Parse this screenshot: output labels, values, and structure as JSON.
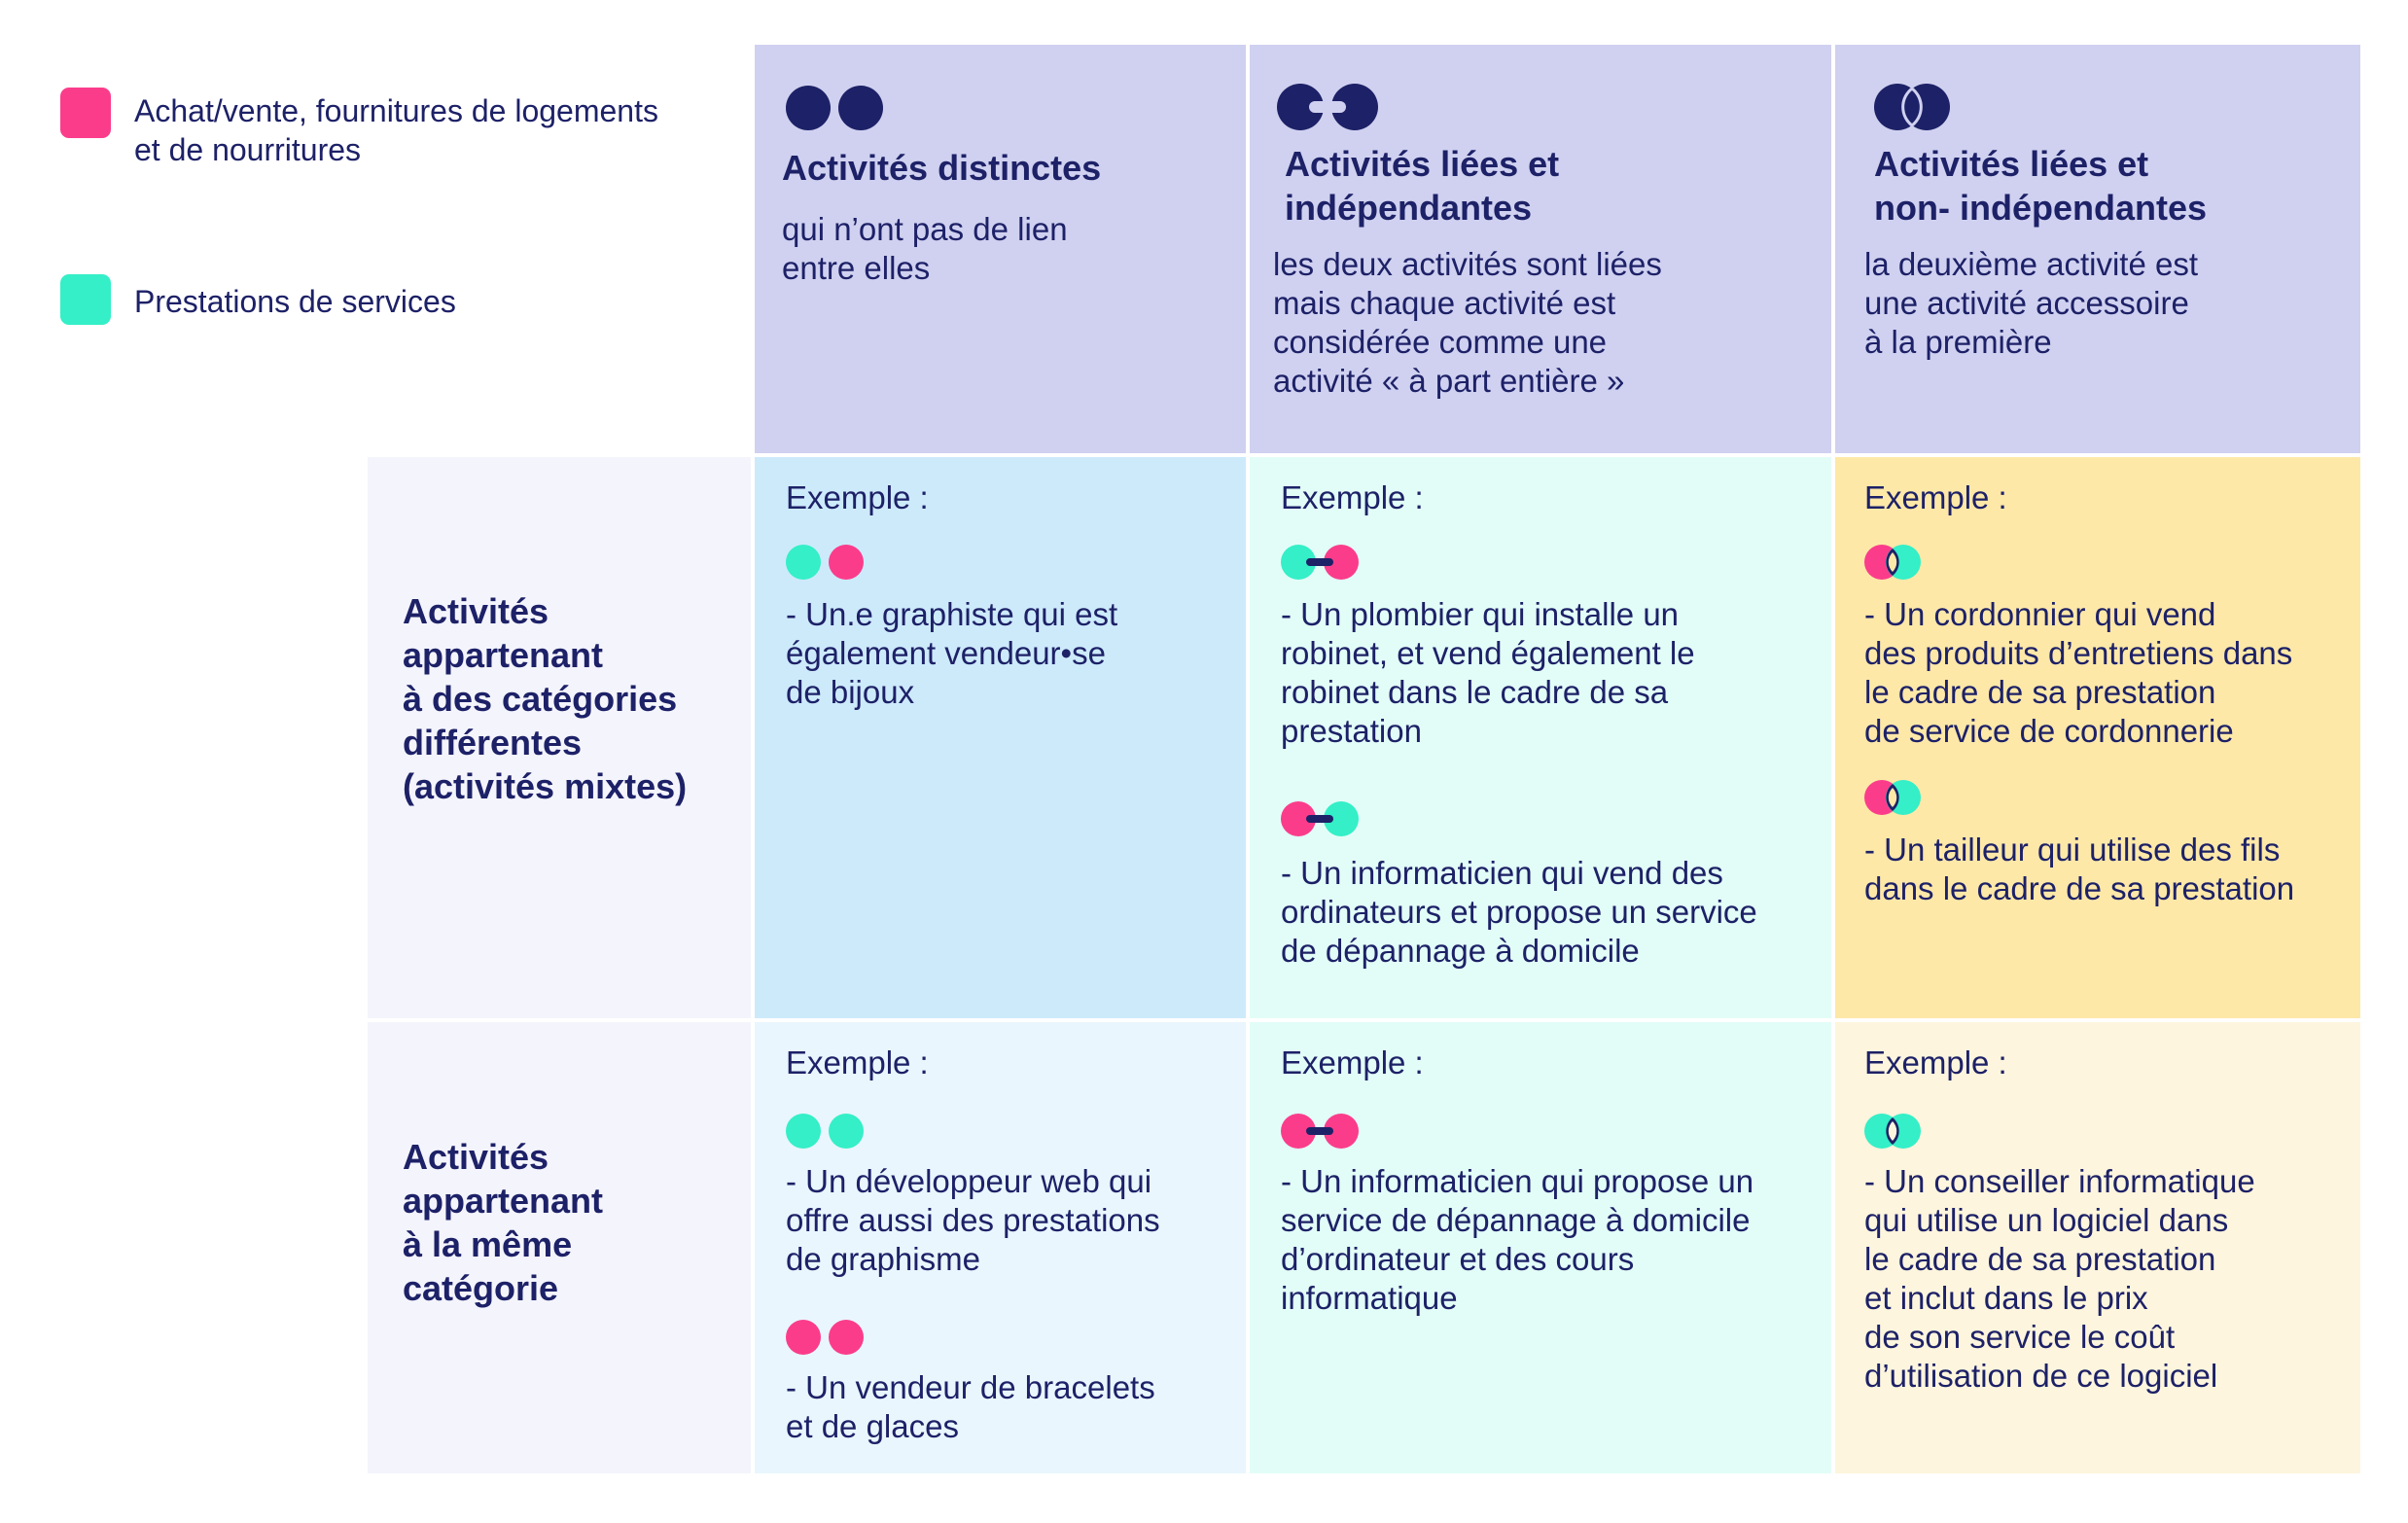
{
  "colors": {
    "pink": "#fb3c8b",
    "teal": "#34efc7",
    "navy": "#1d2167",
    "header_bg": "#d0d1f0",
    "row_header_bg": "#f4f4fc",
    "cell_blue": "#cdeafb",
    "cell_mint": "#e2fdf7",
    "cell_yellow": "#fde8a8",
    "cell_lightblue": "#e9f6fd",
    "cell_cream": "#fdf5dd"
  },
  "legend": [
    {
      "color": "pink",
      "lines": [
        "Achat/vente, fournitures de logements",
        "et de nourritures"
      ]
    },
    {
      "color": "teal",
      "lines": [
        "Prestations de services"
      ]
    }
  ],
  "columns": [
    {
      "icon": "two-separate-dots-icon",
      "title_lines": [
        "Activités distinctes"
      ],
      "desc_lines": [
        "qui n’ont pas de lien",
        "entre elles"
      ]
    },
    {
      "icon": "linked-dots-icon",
      "title_lines": [
        "Activités liées et",
        "indépendantes"
      ],
      "desc_lines": [
        "les deux activités sont liées",
        "mais chaque activité est",
        "considérée comme une",
        "activité « à part entière »"
      ]
    },
    {
      "icon": "overlapping-dots-icon",
      "title_lines": [
        "Activités liées et",
        "non- indépendantes"
      ],
      "desc_lines": [
        "la deuxième activité est",
        "une activité accessoire",
        "à la première"
      ]
    }
  ],
  "rows": [
    {
      "label_lines": [
        "Activités",
        "appartenant",
        "à des catégories",
        "différentes",
        "(activités mixtes)"
      ],
      "cells": [
        {
          "example_label": "Exemple :",
          "items": [
            {
              "icon": "teal-and-pink-separate-dots-icon",
              "lines": [
                "- Un.e graphiste qui est",
                "également vendeur•se",
                "de bijoux"
              ]
            }
          ]
        },
        {
          "example_label": "Exemple :",
          "items": [
            {
              "icon": "teal-pink-linked-dots-icon",
              "lines": [
                "- Un plombier qui installe un",
                "robinet, et vend également le",
                "robinet dans le cadre de sa",
                "prestation"
              ]
            },
            {
              "icon": "pink-teal-linked-dots-icon",
              "lines": [
                "- Un informaticien qui vend des",
                "ordinateurs et propose un service",
                "de dépannage à domicile"
              ]
            }
          ]
        },
        {
          "example_label": "Exemple :",
          "items": [
            {
              "icon": "pink-teal-overlapping-dots-icon",
              "lines": [
                "- Un cordonnier qui vend",
                "des produits d’entretiens dans",
                "le cadre de sa prestation",
                "de service de cordonnerie"
              ]
            },
            {
              "icon": "pink-teal-overlapping-dots-icon",
              "lines": [
                "- Un tailleur qui utilise des fils",
                "dans le cadre de sa prestation"
              ]
            }
          ]
        }
      ]
    },
    {
      "label_lines": [
        "Activités",
        "appartenant",
        "à la même",
        "catégorie"
      ],
      "cells": [
        {
          "example_label": "Exemple :",
          "items": [
            {
              "icon": "teal-teal-separate-dots-icon",
              "lines": [
                "- Un développeur web qui",
                "offre aussi des prestations",
                "de graphisme"
              ]
            },
            {
              "icon": "pink-pink-separate-dots-icon",
              "lines": [
                "- Un vendeur de bracelets",
                "et de glaces"
              ]
            }
          ]
        },
        {
          "example_label": "Exemple :",
          "items": [
            {
              "icon": "pink-pink-linked-dots-icon",
              "lines": [
                "- Un informaticien qui propose un",
                "service de dépannage à domicile",
                "d’ordinateur et des cours",
                "informatique"
              ]
            }
          ]
        },
        {
          "example_label": "Exemple :",
          "items": [
            {
              "icon": "teal-teal-overlapping-dots-icon",
              "lines": [
                "- Un conseiller informatique",
                "qui utilise un logiciel dans",
                "le cadre de sa prestation",
                "et inclut dans le prix",
                "de son service le coût",
                "d’utilisation de ce logiciel"
              ]
            }
          ]
        }
      ]
    }
  ]
}
